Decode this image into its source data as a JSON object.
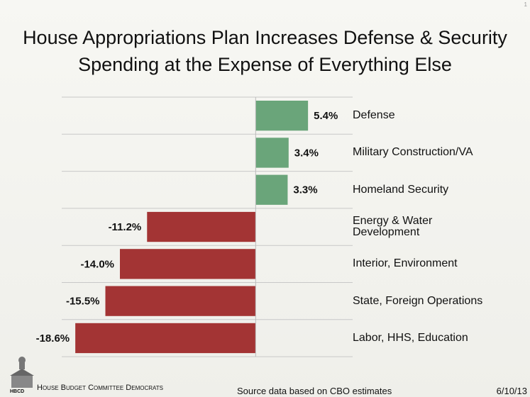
{
  "slide_number": "1",
  "chart_data": {
    "type": "barh",
    "title": "House Appropriations Plan Increases Defense & Security Spending at the Expense of Everything Else",
    "categories": [
      "Defense",
      "Military Construction/VA",
      "Homeland Security",
      "Energy & Water Development",
      "Interior, Environment",
      "State, Foreign Operations",
      "Labor, HHS, Education"
    ],
    "values": [
      5.4,
      3.4,
      3.3,
      -11.2,
      -14.0,
      -15.5,
      -18.6
    ],
    "value_labels": [
      "5.4%",
      "3.4%",
      "3.3%",
      "-11.2%",
      "-14.0%",
      "-15.5%",
      "-18.6%"
    ],
    "positive_color": "#6aa57a",
    "negative_color": "#a33434",
    "xlim": [
      -20,
      10
    ]
  },
  "footer": {
    "logo": "HBCD",
    "organization": "House Budget Committee Democrats",
    "source": "Source data based on CBO estimates",
    "date": "6/10/13"
  }
}
